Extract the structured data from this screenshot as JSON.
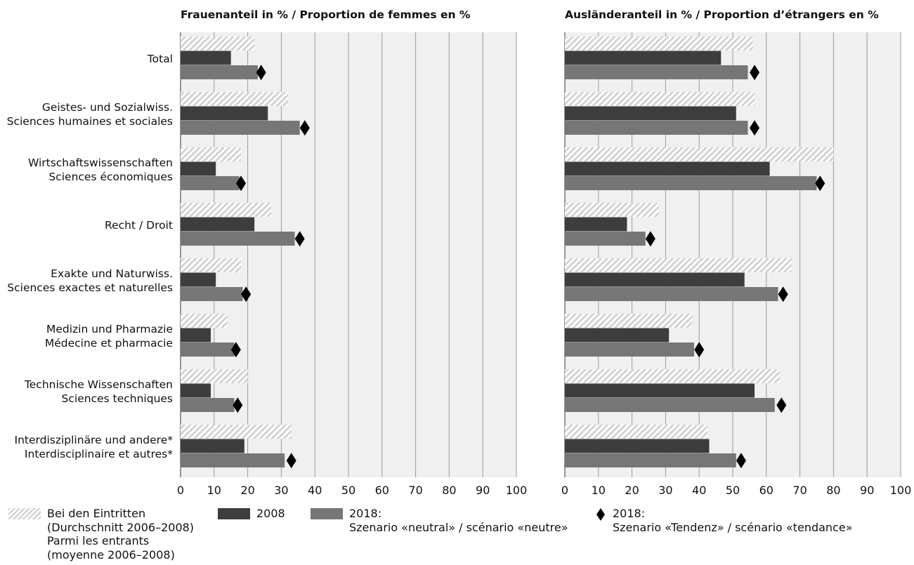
{
  "colors": {
    "hatch": "#d3d3d3",
    "bar_2008": "#3d3d3d",
    "bar_2018": "#767676",
    "plot_bg": "#f0f0f0",
    "grid": "#9a9a9a",
    "marker": "#000000"
  },
  "chart_data": [
    {
      "type": "bar",
      "orientation": "horizontal",
      "title": "Frauenanteil in % / Proportion de femmes en %",
      "xlim": [
        0,
        100
      ],
      "xticks": [
        "0",
        "10",
        "20",
        "30",
        "40",
        "50",
        "60",
        "70",
        "80",
        "90",
        "100"
      ],
      "grid": true,
      "categories": [
        [
          "Total"
        ],
        [
          "Geistes- und Sozialwiss.",
          "Sciences humaines et sociales"
        ],
        [
          "Wirtschaftswissenschaften",
          "Sciences économiques"
        ],
        [
          "Recht / Droit"
        ],
        [
          "Exakte und Naturwiss.",
          "Sciences exactes et naturelles"
        ],
        [
          "Medizin und Pharmazie",
          "Médecine et pharmacie"
        ],
        [
          "Technische Wissenschaften",
          "Sciences techniques"
        ],
        [
          "Interdisziplinäre und andere*",
          "Interdisciplinaire et autres*"
        ]
      ],
      "series": [
        {
          "key": "entrants",
          "values": [
            22,
            32,
            18,
            27,
            18,
            14,
            20,
            33
          ]
        },
        {
          "key": "y2008",
          "values": [
            15,
            26,
            10.5,
            22,
            10.5,
            9,
            9,
            19
          ]
        },
        {
          "key": "y2018_neutral",
          "values": [
            23,
            35.5,
            17.5,
            34,
            18.5,
            16,
            16,
            31
          ]
        },
        {
          "key": "y2018_tendance",
          "values": [
            24,
            37,
            18,
            35.5,
            19.5,
            16.5,
            17,
            33
          ]
        }
      ]
    },
    {
      "type": "bar",
      "orientation": "horizontal",
      "title": "Ausländeranteil in % / Proportion d’étrangers en %",
      "xlim": [
        0,
        100
      ],
      "xticks": [
        "0",
        "10",
        "20",
        "30",
        "40",
        "50",
        "60",
        "70",
        "80",
        "90",
        "100"
      ],
      "grid": true,
      "series": [
        {
          "key": "entrants",
          "values": [
            56,
            56.5,
            80,
            28,
            67.5,
            38,
            64,
            42.5
          ]
        },
        {
          "key": "y2008",
          "values": [
            46.5,
            51,
            61,
            18.5,
            53.5,
            31,
            56.5,
            43
          ]
        },
        {
          "key": "y2018_neutral",
          "values": [
            54.5,
            54.5,
            75,
            24,
            63.5,
            38.5,
            62.5,
            51
          ]
        },
        {
          "key": "y2018_tendance",
          "values": [
            56.5,
            56.5,
            76,
            25.5,
            65,
            40,
            64.5,
            52.5
          ]
        }
      ]
    }
  ],
  "legend": {
    "entrants": [
      "Bei den Eintritten",
      "(Durchschnitt 2006–2008)",
      "Parmi les entrants",
      "(moyenne 2006–2008)"
    ],
    "y2008": [
      "2008"
    ],
    "y2018_neutral": [
      "2018:",
      "Szenario «neutral» / scénario «neutre»"
    ],
    "y2018_tendance": [
      "2018:",
      "Szenario «Tendenz» / scénario «tendance»"
    ]
  }
}
